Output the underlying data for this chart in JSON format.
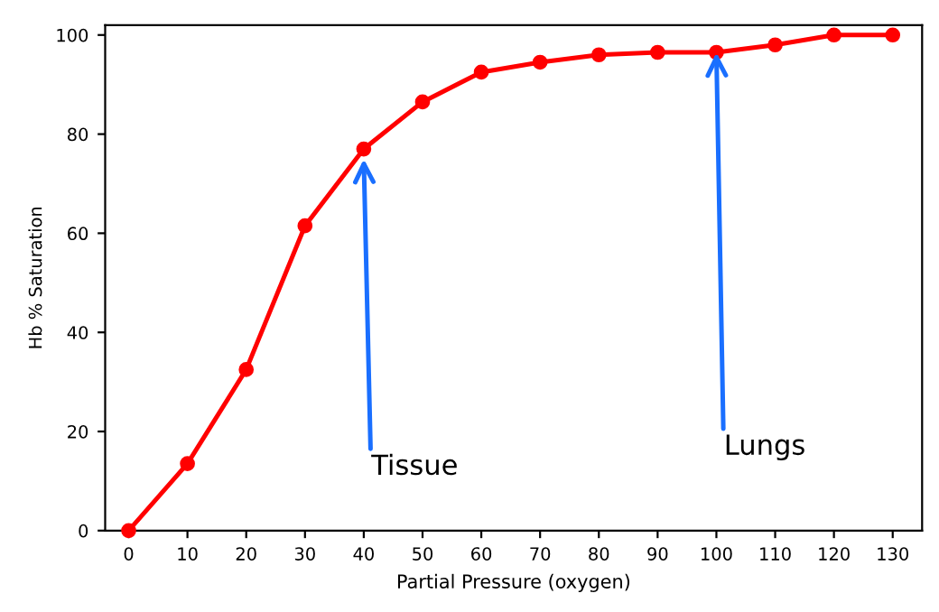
{
  "chart_data": {
    "type": "line",
    "xlabel": "Partial Pressure (oxygen)",
    "ylabel": "Hb % Saturation",
    "x": [
      0,
      10,
      20,
      30,
      40,
      50,
      60,
      70,
      80,
      90,
      100,
      110,
      120,
      130
    ],
    "series": [
      {
        "color": "#ff0000",
        "values": [
          0,
          13.5,
          32.5,
          61.5,
          77,
          86.5,
          92.5,
          94.5,
          96,
          96.5,
          96.5,
          98,
          100,
          100
        ]
      }
    ],
    "marker": "circle",
    "line_style": "solid",
    "xlim": [
      -4,
      135
    ],
    "xticks": [
      0,
      10,
      20,
      30,
      40,
      50,
      60,
      70,
      80,
      90,
      100,
      110,
      120,
      130
    ],
    "ylim": [
      0,
      102
    ],
    "yticks": [
      0,
      20,
      40,
      60,
      80,
      100
    ],
    "grid": false,
    "legend": false,
    "annotations": [
      {
        "text": "Tissue",
        "x": 40,
        "y": 75
      },
      {
        "text": "Lungs",
        "x": 100,
        "y": 96.5
      }
    ]
  }
}
